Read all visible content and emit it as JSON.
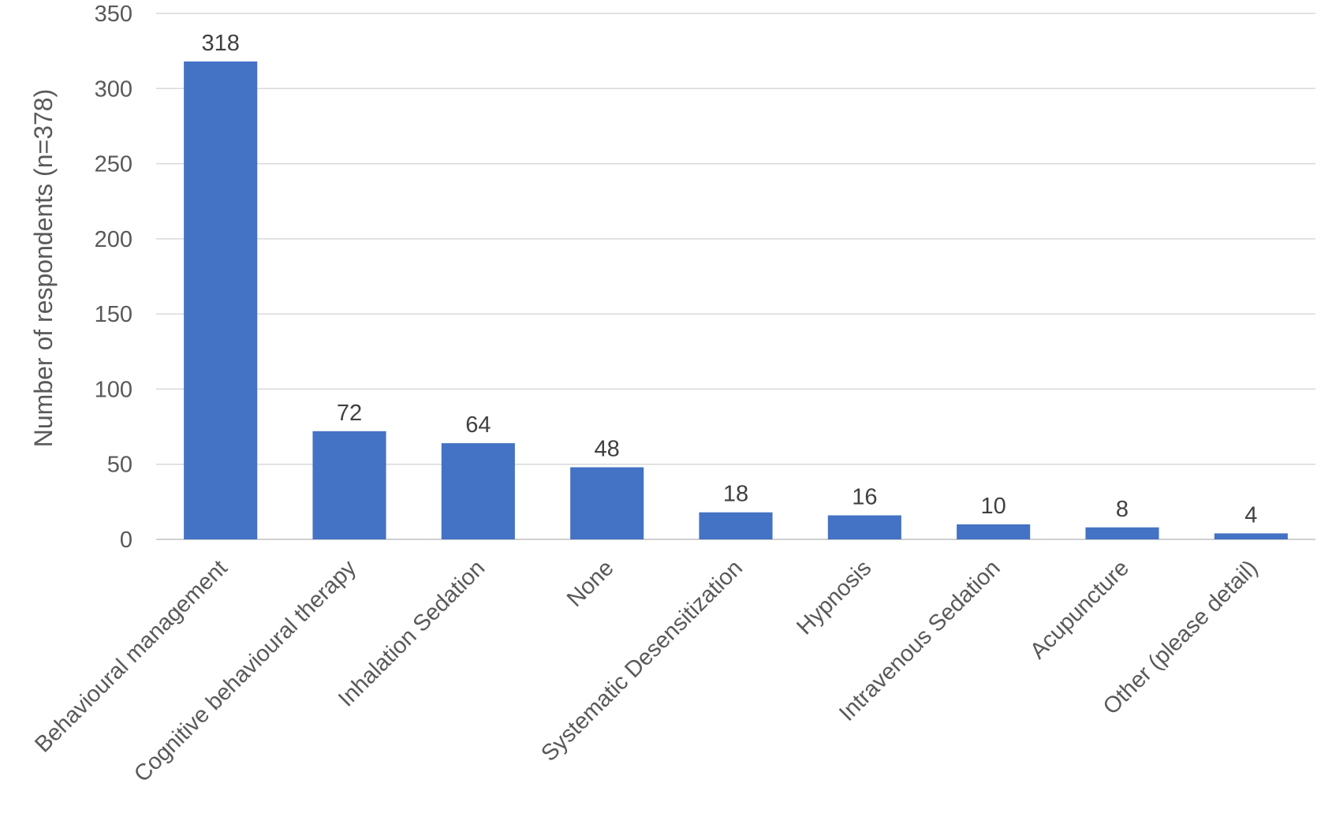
{
  "chart_data": {
    "type": "bar",
    "title": "",
    "xlabel": "",
    "ylabel": "Number of respondents (n=378)",
    "ylim": [
      0,
      350
    ],
    "yticks": [
      0,
      50,
      100,
      150,
      200,
      250,
      300,
      350
    ],
    "grid": true,
    "legend": "none",
    "bar_color": "#4472C4",
    "categories": [
      "Behavioural management",
      "Cognitive behavioural therapy",
      "Inhalation Sedation",
      "None",
      "Systematic Desensitization",
      "Hypnosis",
      "Intravenous Sedation",
      "Acupuncture",
      "Other (please detail)"
    ],
    "values": [
      318,
      72,
      64,
      48,
      18,
      16,
      10,
      8,
      4
    ]
  }
}
